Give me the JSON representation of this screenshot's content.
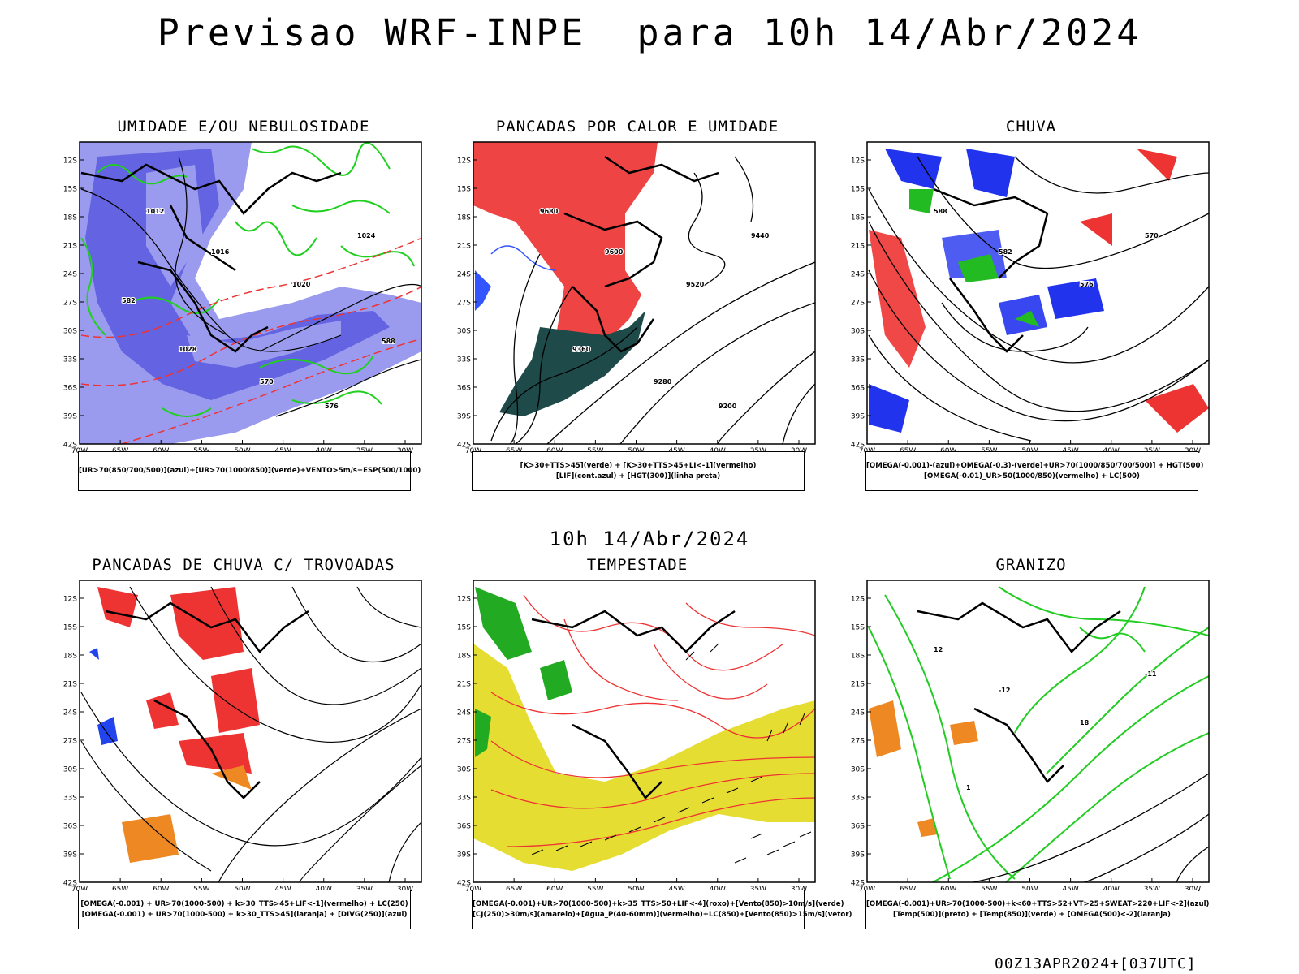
{
  "title": "Previsao WRF-INPE  para 10h 14/Abr/2024",
  "mid_label": "10h 14/Abr/2024",
  "footer": "00Z13APR2024+[037UTC]",
  "axes": {
    "y_ticks": [
      "12S",
      "15S",
      "18S",
      "21S",
      "24S",
      "27S",
      "30S",
      "33S",
      "36S",
      "39S",
      "42S"
    ],
    "x_ticks": [
      "70W",
      "65W",
      "60W",
      "55W",
      "50W",
      "45W",
      "40W",
      "35W",
      "30W"
    ]
  },
  "panels": [
    {
      "id": "umidade",
      "title": "UMIDADE E/OU NEBULOSIDADE",
      "legend": [
        "[UR>70(850/700/500)](azul)+[UR>70(1000/850)](verde)+VENTO>5m/s+ESP(500/1000)"
      ],
      "colors": {
        "fill_blue": "#9a9aee",
        "fill_dark": "#5a5adf",
        "green": "#1fd01f",
        "red": "#ee3333"
      },
      "contour_labels": [
        "1012",
        "1016",
        "1020",
        "1024",
        "1028",
        "570",
        "576",
        "582",
        "588"
      ]
    },
    {
      "id": "pancadas-calor",
      "title": "PANCADAS POR CALOR E UMIDADE",
      "legend": [
        "[K>30+TTS>45](verde) + [K>30+TTS>45+LI<-1](vermelho)",
        "[LIF](cont.azul) + [HGT(300)](linha preta)"
      ],
      "colors": {
        "red": "#ee4444",
        "teal": "#1f4a4a",
        "blue": "#3355ff"
      },
      "contour_labels": [
        "9680",
        "9600",
        "9520",
        "9440",
        "9360",
        "9280",
        "9200"
      ]
    },
    {
      "id": "chuva",
      "title": "CHUVA",
      "legend": [
        "[OMEGA(-0.001)-(azul)+OMEGA(-0.3)-(verde)+UR>70(1000/850/700/500)] + HGT(500)",
        "[OMEGA(-0.01)_UR>50(1000/850)(vermelho) + LC(500)"
      ],
      "colors": {
        "blue": "#2233ee",
        "green": "#22bb22",
        "red": "#ee3333"
      },
      "contour_labels": [
        "588",
        "582",
        "576",
        "570"
      ]
    },
    {
      "id": "pancadas-trovoadas",
      "title": "PANCADAS DE CHUVA C/ TROVOADAS",
      "legend": [
        "[OMEGA(-0.001) + UR>70(1000-500) + k>30_TTS>45+LIF<-1](vermelho) + LC(250)",
        "[OMEGA(-0.001) + UR>70(1000-500) + k>30_TTS>45](laranja) + [DIVG(250)](azul)"
      ],
      "colors": {
        "red": "#ee3333",
        "orange": "#ee8822",
        "blue": "#2244ee"
      },
      "contour_labels": []
    },
    {
      "id": "tempestade",
      "title": "TEMPESTADE",
      "legend": [
        "[OMEGA(-0.001)+UR>70(1000-500)+k>35_TTS>50+LIF<-4](roxo)+[Vento(850)>10m/s](verde)",
        "[CJ(250)>30m/s](amarelo)+[Agua_P(40-60mm)](vermelho)+LC(850)+[Vento(850)>15m/s](vetor)"
      ],
      "colors": {
        "yellow": "#e6dd33",
        "green": "#22aa22",
        "red": "#ee3333"
      },
      "contour_labels": []
    },
    {
      "id": "granizo",
      "title": "GRANIZO",
      "legend": [
        "[OMEGA(-0.001)+UR>70(1000-500)+k<60+TTS>52+VT>25+SWEAT>220+LIF<-2](azul)",
        "[Temp(500)](preto) + [Temp(850)](verde) + [OMEGA(500)<-2](laranja)"
      ],
      "colors": {
        "green": "#22cc22",
        "orange": "#ee8822"
      },
      "contour_labels": [
        "12",
        "-12",
        "18",
        "-11",
        "1"
      ]
    }
  ]
}
